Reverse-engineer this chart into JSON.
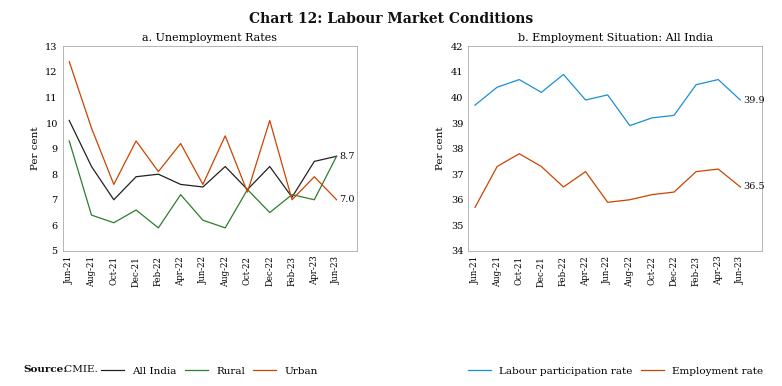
{
  "title": "Chart 12: Labour Market Conditions",
  "source_bold": "Source:",
  "source_regular": " CMIE.",
  "chart_a_title": "a. Unemployment Rates",
  "chart_a_ylabel": "Per cent",
  "chart_a_ylim": [
    5,
    13
  ],
  "chart_a_yticks": [
    5,
    6,
    7,
    8,
    9,
    10,
    11,
    12,
    13
  ],
  "chart_a_xticks": [
    "Jun-21",
    "Aug-21",
    "Oct-21",
    "Dec-21",
    "Feb-22",
    "Apr-22",
    "Jun-22",
    "Aug-22",
    "Oct-22",
    "Dec-22",
    "Feb-23",
    "Apr-23",
    "Jun-23"
  ],
  "all_india": [
    10.1,
    8.3,
    7.0,
    7.9,
    8.0,
    7.6,
    7.5,
    8.3,
    7.4,
    8.3,
    7.1,
    8.5,
    8.7
  ],
  "rural": [
    9.3,
    6.4,
    6.1,
    6.6,
    5.9,
    7.2,
    6.2,
    5.9,
    7.4,
    6.5,
    7.2,
    7.0,
    8.7
  ],
  "urban": [
    12.4,
    9.8,
    7.6,
    9.3,
    8.1,
    9.2,
    7.6,
    9.5,
    7.3,
    10.1,
    7.0,
    7.9,
    7.0
  ],
  "all_india_color": "#222222",
  "rural_color": "#2e7d2e",
  "urban_color": "#cc4400",
  "label_87": "8.7",
  "label_70": "7.0",
  "chart_b_title": "b. Employment Situation: All India",
  "chart_b_ylabel": "Per cent",
  "chart_b_ylim": [
    34,
    42
  ],
  "chart_b_yticks": [
    34,
    35,
    36,
    37,
    38,
    39,
    40,
    41,
    42
  ],
  "chart_b_xticks": [
    "Jun-21",
    "Aug-21",
    "Oct-21",
    "Dec-21",
    "Feb-22",
    "Apr-22",
    "Jun-22",
    "Aug-22",
    "Oct-22",
    "Dec-22",
    "Feb-23",
    "Apr-23",
    "Jun-23"
  ],
  "lpr_values": [
    39.7,
    40.4,
    40.7,
    40.2,
    40.9,
    39.9,
    40.1,
    38.9,
    39.2,
    39.3,
    40.5,
    40.7,
    39.9
  ],
  "er_values": [
    35.7,
    37.3,
    37.8,
    37.3,
    36.5,
    37.1,
    35.9,
    36.0,
    36.2,
    36.3,
    37.1,
    37.2,
    36.5
  ],
  "lpr_color": "#1a90d4",
  "er_color": "#cc4400",
  "label_399": "39.9",
  "label_365": "36.5",
  "background_color": "#ffffff"
}
